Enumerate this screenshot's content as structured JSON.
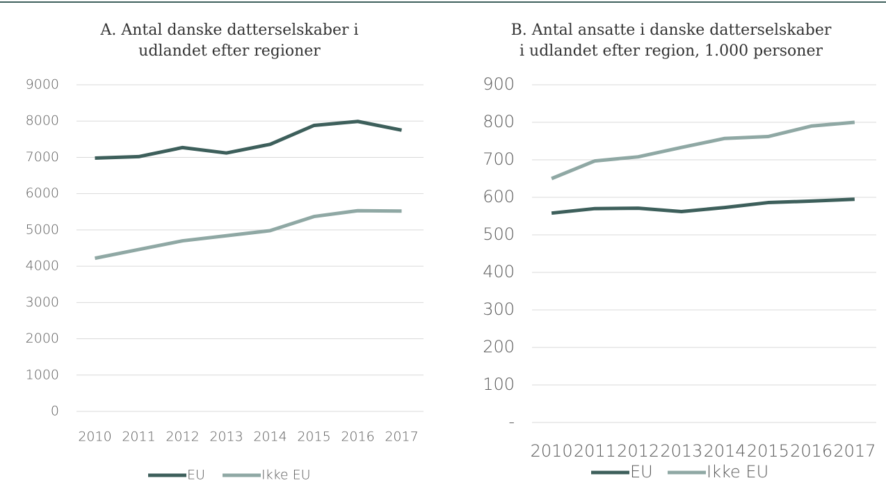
{
  "chart_data": [
    {
      "type": "line",
      "title": [
        "A. Antal danske datterselskaber i",
        "udlandet efter regioner"
      ],
      "categories": [
        "2010",
        "2011",
        "2012",
        "2013",
        "2014",
        "2015",
        "2016",
        "2017"
      ],
      "series": [
        {
          "name": "EU",
          "color": "#3d5f5b",
          "values": [
            6980,
            7020,
            7270,
            7120,
            7360,
            7880,
            7990,
            7750
          ]
        },
        {
          "name": "Ikke EU",
          "color": "#8fa8a4",
          "values": [
            4220,
            4460,
            4700,
            4840,
            4980,
            5370,
            5530,
            5520
          ]
        }
      ],
      "ylim": [
        0,
        9000
      ],
      "yticks": [
        0,
        1000,
        2000,
        3000,
        4000,
        5000,
        6000,
        7000,
        8000,
        9000
      ],
      "grid": true,
      "legend": "bottom"
    },
    {
      "type": "line",
      "title": [
        "B. Antal ansatte i danske datterselskaber",
        "i udlandet efter region, 1.000 personer"
      ],
      "categories": [
        "2010",
        "2011",
        "2012",
        "2013",
        "2014",
        "2015",
        "2016",
        "2017"
      ],
      "series": [
        {
          "name": "EU",
          "color": "#3d5f5b",
          "values": [
            558,
            570,
            571,
            562,
            573,
            586,
            590,
            595
          ]
        },
        {
          "name": "Ikke EU",
          "color": "#8fa8a4",
          "values": [
            650,
            697,
            708,
            733,
            757,
            762,
            790,
            800
          ]
        }
      ],
      "ylim": [
        0,
        900
      ],
      "yticks": [
        {
          "value": 0,
          "label": "-"
        },
        100,
        200,
        300,
        400,
        500,
        600,
        700,
        800,
        900
      ],
      "grid": true,
      "legend": "bottom"
    }
  ]
}
